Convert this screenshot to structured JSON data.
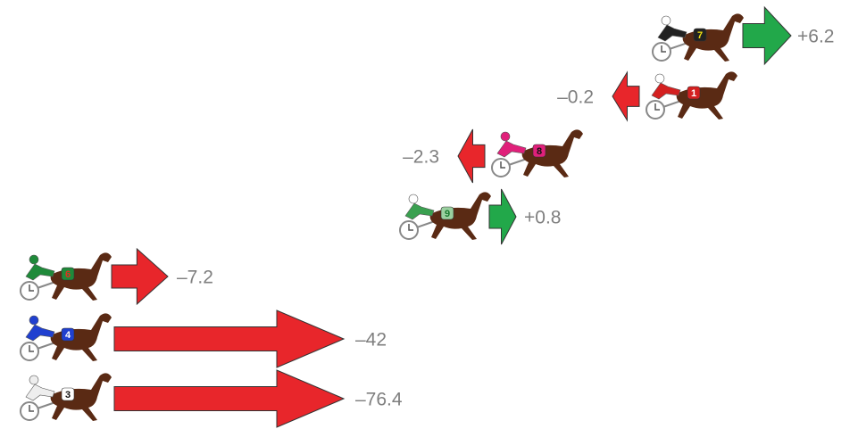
{
  "rows": [
    {
      "number": "7",
      "change": "+6.2",
      "color": "#22a84a"
    },
    {
      "number": "1",
      "change": "–0.2",
      "color": "#e8262b"
    },
    {
      "number": "8",
      "change": "–2.3",
      "color": "#e8262b"
    },
    {
      "number": "9",
      "change": "+0.8",
      "color": "#22a84a"
    },
    {
      "number": "6",
      "change": "–7.2",
      "color": "#e8262b"
    },
    {
      "number": "4",
      "change": "–42",
      "color": "#e8262b"
    },
    {
      "number": "3",
      "change": "–76.4",
      "color": "#e8262b"
    }
  ]
}
